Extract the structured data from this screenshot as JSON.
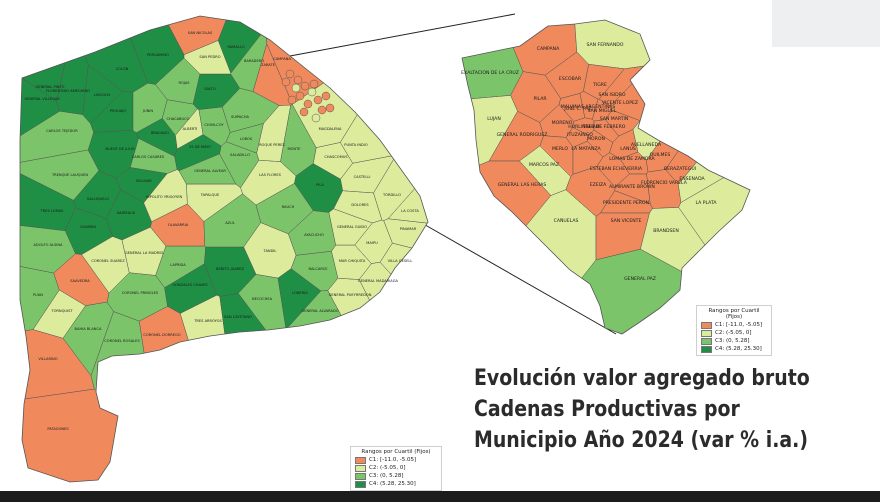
{
  "title": {
    "line1": "Evolución valor agregado bruto",
    "line2": "Cadenas Productivas por",
    "line3": "Municipio Año 2024 (var % i.a.)"
  },
  "legend": {
    "title": "Rangos por Cuartil (Fijos)",
    "items": [
      {
        "label": "C1: [-11.0, -5.05]",
        "color": "#f08a5d"
      },
      {
        "label": "C2: (-5.05, 0]",
        "color": "#dcec9c"
      },
      {
        "label": "C3: (0, 5.28]",
        "color": "#7cc46a"
      },
      {
        "label": "C4: (5.28, 25.30]",
        "color": "#1f8f45"
      }
    ]
  },
  "colors": {
    "c1": "#f08a5d",
    "c2": "#dcec9c",
    "c3": "#7cc46a",
    "c4": "#1f8f45",
    "border": "#555555"
  },
  "main_map": {
    "municipios": [
      {
        "name": "GENERAL VILLEGAS",
        "class": "c4"
      },
      {
        "name": "FLORENTINO AMEGHINO",
        "class": "c4"
      },
      {
        "name": "CARLOS TEJEDOR",
        "class": "c3"
      },
      {
        "name": "PEHUAJO",
        "class": "c4"
      },
      {
        "name": "TRENQUE LAUQUEN",
        "class": "c3"
      },
      {
        "name": "SALLIQUELO",
        "class": "c4"
      },
      {
        "name": "TRES LOMAS",
        "class": "c4"
      },
      {
        "name": "GUAMINI",
        "class": "c4"
      },
      {
        "name": "ADOLFO ALSINA",
        "class": "c3"
      },
      {
        "name": "PUAN",
        "class": "c3"
      },
      {
        "name": "SAAVEDRA",
        "class": "c1"
      },
      {
        "name": "CORONEL SUAREZ",
        "class": "c2"
      },
      {
        "name": "TORNQUIST",
        "class": "c2"
      },
      {
        "name": "BAHIA BLANCA",
        "class": "c3"
      },
      {
        "name": "CORONEL ROSALES",
        "class": "c3"
      },
      {
        "name": "VILLARINO",
        "class": "c1"
      },
      {
        "name": "PATAGONES",
        "class": "c1"
      },
      {
        "name": "CORONEL DORREGO",
        "class": "c1"
      },
      {
        "name": "CORONEL PRINGLES",
        "class": "c3"
      },
      {
        "name": "TRES ARROYOS",
        "class": "c2"
      },
      {
        "name": "GONZALES CHAVES",
        "class": "c4"
      },
      {
        "name": "NECOCHEA",
        "class": "c3"
      },
      {
        "name": "SAN CAYETANO",
        "class": "c4"
      },
      {
        "name": "LOBERIA",
        "class": "c4"
      },
      {
        "name": "BENITO JUAREZ",
        "class": "c4"
      },
      {
        "name": "LAPRIDA",
        "class": "c3"
      },
      {
        "name": "GENERAL LA MADRID",
        "class": "c2"
      },
      {
        "name": "OLAVARRIA",
        "class": "c1"
      },
      {
        "name": "AZUL",
        "class": "c3"
      },
      {
        "name": "TANDIL",
        "class": "c2"
      },
      {
        "name": "BALCARCE",
        "class": "c3"
      },
      {
        "name": "GENERAL PUEYRREDON",
        "class": "c2"
      },
      {
        "name": "MAR CHIQUITA",
        "class": "c2"
      },
      {
        "name": "RAUCH",
        "class": "c3"
      },
      {
        "name": "AYACUCHO",
        "class": "c3"
      },
      {
        "name": "TAPALQUE",
        "class": "c2"
      },
      {
        "name": "BOLIVAR",
        "class": "c4"
      },
      {
        "name": "DAIREAUX",
        "class": "c4"
      },
      {
        "name": "HIPOLITO YRIGOYEN",
        "class": "c2"
      },
      {
        "name": "CARLOS CASARES",
        "class": "c3"
      },
      {
        "name": "NUEVE DE JULIO",
        "class": "c4"
      },
      {
        "name": "25 DE MAYO",
        "class": "c4"
      },
      {
        "name": "SALADILLO",
        "class": "c3"
      },
      {
        "name": "GENERAL ALVEAR",
        "class": "c3"
      },
      {
        "name": "LAS FLORES",
        "class": "c2"
      },
      {
        "name": "PILA",
        "class": "c4"
      },
      {
        "name": "DOLORES",
        "class": "c2"
      },
      {
        "name": "CHASCOMUS",
        "class": "c2"
      },
      {
        "name": "GENERAL GUIDO",
        "class": "c2"
      },
      {
        "name": "MAIPU",
        "class": "c2"
      },
      {
        "name": "GENERAL MADARIAGA",
        "class": "c2"
      },
      {
        "name": "VILLA GESELL",
        "class": "c2"
      },
      {
        "name": "PINAMAR",
        "class": "c2"
      },
      {
        "name": "LA COSTA",
        "class": "c2"
      },
      {
        "name": "TORDILLO",
        "class": "c2"
      },
      {
        "name": "CASTELLI",
        "class": "c2"
      },
      {
        "name": "GENERAL ALVARADO",
        "class": "c3"
      },
      {
        "name": "LINCOLN",
        "class": "c4"
      },
      {
        "name": "GENERAL PINTO",
        "class": "c4"
      },
      {
        "name": "JUNIN",
        "class": "c3"
      },
      {
        "name": "CHACABUCO",
        "class": "c3"
      },
      {
        "name": "BRAGADO",
        "class": "c4"
      },
      {
        "name": "ALBERTI",
        "class": "c2"
      },
      {
        "name": "CHIVILCOY",
        "class": "c3"
      },
      {
        "name": "SUIPACHA",
        "class": "c3"
      },
      {
        "name": "LOBOS",
        "class": "c3"
      },
      {
        "name": "ROQUE PEREZ",
        "class": "c2"
      },
      {
        "name": "MONTE",
        "class": "c3"
      },
      {
        "name": "MAGDALENA",
        "class": "c2"
      },
      {
        "name": "PUNTA INDIO",
        "class": "c2"
      },
      {
        "name": "PERGAMINO",
        "class": "c4"
      },
      {
        "name": "ROJAS",
        "class": "c3"
      },
      {
        "name": "SALTO",
        "class": "c4"
      },
      {
        "name": "COLON",
        "class": "c4"
      },
      {
        "name": "SAN NICOLAS",
        "class": "c1"
      },
      {
        "name": "RAMALLO",
        "class": "c4"
      },
      {
        "name": "SAN PEDRO",
        "class": "c2"
      },
      {
        "name": "BARADERO",
        "class": "c3"
      },
      {
        "name": "ZARATE",
        "class": "c1"
      },
      {
        "name": "CAMPANA",
        "class": "c1"
      }
    ]
  },
  "inset_map": {
    "municipios": [
      {
        "name": "CAMPANA",
        "class": "c1"
      },
      {
        "name": "SAN FERNANDO",
        "class": "c2"
      },
      {
        "name": "EXALTACION DE LA CRUZ",
        "class": "c3"
      },
      {
        "name": "ESCOBAR",
        "class": "c1"
      },
      {
        "name": "TIGRE",
        "class": "c1"
      },
      {
        "name": "PILAR",
        "class": "c1"
      },
      {
        "name": "LUJAN",
        "class": "c2"
      },
      {
        "name": "GENERAL RODRIGUEZ",
        "class": "c1"
      },
      {
        "name": "MORENO",
        "class": "c1"
      },
      {
        "name": "MERLO",
        "class": "c1"
      },
      {
        "name": "MARCOS PAZ",
        "class": "c2"
      },
      {
        "name": "GENERAL LAS HERAS",
        "class": "c1"
      },
      {
        "name": "CAÑUELAS",
        "class": "c2"
      },
      {
        "name": "EZEIZA",
        "class": "c1"
      },
      {
        "name": "ESTEBAN ECHEVERRIA",
        "class": "c1"
      },
      {
        "name": "LOMAS DE ZAMORA",
        "class": "c1"
      },
      {
        "name": "AVELLANEDA",
        "class": "c2"
      },
      {
        "name": "QUILMES",
        "class": "c1"
      },
      {
        "name": "BERAZATEGUI",
        "class": "c1"
      },
      {
        "name": "FLORENCIO VARELA",
        "class": "c1"
      },
      {
        "name": "ALMIRANTE BROWN",
        "class": "c1"
      },
      {
        "name": "PRESIDENTE PERON",
        "class": "c1"
      },
      {
        "name": "SAN VICENTE",
        "class": "c1"
      },
      {
        "name": "LA PLATA",
        "class": "c2"
      },
      {
        "name": "ENSENADA",
        "class": "c2"
      },
      {
        "name": "BRANDSEN",
        "class": "c2"
      },
      {
        "name": "GENERAL PAZ",
        "class": "c3"
      },
      {
        "name": "LA MATANZA",
        "class": "c1"
      },
      {
        "name": "MALVINAS ARGENTINAS",
        "class": "c1"
      },
      {
        "name": "JOSE C. PAZ",
        "class": "c1"
      },
      {
        "name": "SAN MIGUEL",
        "class": "c1"
      },
      {
        "name": "HURLINGHAM",
        "class": "c1"
      },
      {
        "name": "ITUZAINGO",
        "class": "c1"
      },
      {
        "name": "MORON",
        "class": "c1"
      },
      {
        "name": "TRES DE FEBRERO",
        "class": "c1"
      },
      {
        "name": "SAN MARTIN",
        "class": "c1"
      },
      {
        "name": "VICENTE LOPEZ",
        "class": "c1"
      },
      {
        "name": "SAN ISIDRO",
        "class": "c1"
      },
      {
        "name": "LANUS",
        "class": "c1"
      }
    ]
  }
}
